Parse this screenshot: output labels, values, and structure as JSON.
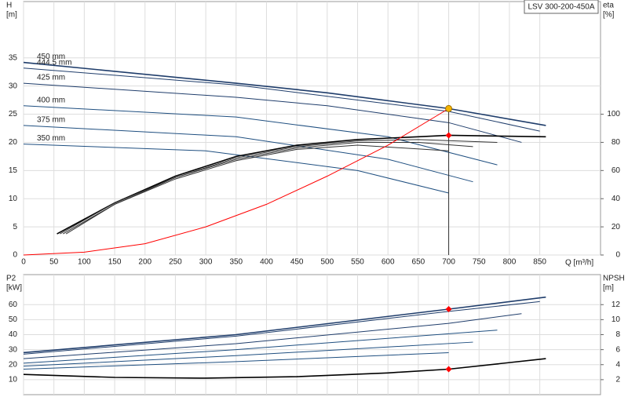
{
  "chart_data": [
    {
      "type": "line",
      "title": "LSV 300-200-450A",
      "ylabel": [
        "H",
        "[m]"
      ],
      "y2label": [
        "eta",
        "[%]"
      ],
      "xlabel": "Q [m³/h]",
      "xlim": [
        0,
        950
      ],
      "ylim": [
        0,
        45
      ],
      "y2lim": [
        0,
        180
      ],
      "xticks": [
        0,
        50,
        100,
        150,
        200,
        250,
        300,
        350,
        400,
        450,
        500,
        550,
        600,
        650,
        700,
        750,
        800,
        850
      ],
      "yticks": [
        0,
        5,
        10,
        15,
        20,
        25,
        30,
        35
      ],
      "y2ticks": [
        0,
        20,
        40,
        60,
        80,
        100
      ],
      "grid": true,
      "series": [
        {
          "name": "450 mm",
          "color": "#1f3d6b",
          "x": [
            0,
            350,
            500,
            700,
            860
          ],
          "values": [
            34.2,
            30.5,
            28.8,
            26,
            23
          ]
        },
        {
          "name": "444.5 mm",
          "color": "#1f3d6b",
          "x": [
            0,
            350,
            700,
            850
          ],
          "values": [
            33.2,
            30.2,
            25.5,
            22
          ]
        },
        {
          "name": "425 mm",
          "color": "#1f3d6b",
          "x": [
            0,
            350,
            500,
            700,
            820
          ],
          "values": [
            30.5,
            28,
            26.5,
            23.5,
            20
          ]
        },
        {
          "name": "400 mm",
          "color": "#1f4f80",
          "x": [
            0,
            350,
            600,
            780
          ],
          "values": [
            26.5,
            24.5,
            21,
            16
          ]
        },
        {
          "name": "375 mm",
          "color": "#1f4f80",
          "x": [
            0,
            350,
            600,
            740
          ],
          "values": [
            23,
            21,
            17,
            13
          ]
        },
        {
          "name": "350 mm",
          "color": "#1f4f80",
          "x": [
            0,
            300,
            550,
            700
          ],
          "values": [
            19.7,
            18.5,
            15,
            11
          ]
        },
        {
          "color": "#000000",
          "axis": "y2",
          "x": [
            55,
            150,
            250,
            350,
            450,
            550,
            650,
            700,
            860
          ],
          "values": [
            15,
            37,
            56,
            70,
            78,
            82,
            84,
            85,
            84
          ]
        },
        {
          "color": "#333333",
          "axis": "y2",
          "x": [
            60,
            150,
            250,
            350,
            450,
            550,
            650,
            780
          ],
          "values": [
            15,
            37,
            55,
            69,
            77,
            81,
            82,
            80
          ]
        },
        {
          "color": "#333333",
          "axis": "y2",
          "x": [
            65,
            150,
            250,
            350,
            450,
            550,
            650,
            740
          ],
          "values": [
            15,
            36,
            55,
            68,
            76,
            80,
            80,
            77
          ]
        },
        {
          "color": "#333333",
          "axis": "y2",
          "x": [
            70,
            150,
            250,
            350,
            450,
            550,
            700
          ],
          "values": [
            15,
            36,
            54,
            67,
            75,
            78,
            74
          ]
        },
        {
          "color": "#ff0000",
          "x": [
            0,
            100,
            200,
            300,
            400,
            500,
            600,
            700
          ],
          "values": [
            0,
            0.5,
            2,
            5,
            9,
            14,
            19.5,
            26
          ]
        }
      ],
      "points": [
        {
          "x": 700,
          "y": 26,
          "color": "#f5b400"
        },
        {
          "x": 700,
          "y": 85,
          "axis": "y2",
          "color": "#ff0000"
        }
      ]
    },
    {
      "type": "line",
      "ylabel": [
        "P2",
        "[kW]"
      ],
      "y2label": [
        "NPSH",
        "[m]"
      ],
      "xlim": [
        0,
        950
      ],
      "ylim": [
        0,
        80
      ],
      "y2lim": [
        0,
        16
      ],
      "xticks": [
        0,
        50,
        100,
        150,
        200,
        250,
        300,
        350,
        400,
        450,
        500,
        550,
        600,
        650,
        700,
        750,
        800,
        850
      ],
      "yticks": [
        10,
        20,
        30,
        40,
        50,
        60
      ],
      "y2ticks": [
        2,
        4,
        6,
        8,
        10,
        12
      ],
      "grid": true,
      "series": [
        {
          "color": "#1f3d6b",
          "x": [
            0,
            350,
            700,
            860
          ],
          "values": [
            28,
            40,
            57,
            65
          ]
        },
        {
          "color": "#1f3d6b",
          "x": [
            0,
            350,
            700,
            850
          ],
          "values": [
            27,
            39,
            55.5,
            62
          ]
        },
        {
          "color": "#1f3d6b",
          "x": [
            0,
            350,
            700,
            820
          ],
          "values": [
            24,
            34,
            47.5,
            54
          ]
        },
        {
          "color": "#1f4f80",
          "x": [
            0,
            350,
            780
          ],
          "values": [
            21,
            30,
            43
          ]
        },
        {
          "color": "#1f4f80",
          "x": [
            0,
            350,
            740
          ],
          "values": [
            19,
            26,
            35
          ]
        },
        {
          "color": "#1f4f80",
          "x": [
            0,
            350,
            700
          ],
          "values": [
            17,
            22,
            28
          ]
        },
        {
          "color": "#000000",
          "axis": "y2",
          "x": [
            0,
            150,
            300,
            450,
            600,
            700,
            860
          ],
          "values": [
            2.7,
            2.3,
            2.2,
            2.4,
            2.9,
            3.4,
            4.8
          ]
        }
      ],
      "points": [
        {
          "x": 700,
          "y": 57,
          "color": "#ff0000"
        },
        {
          "x": 700,
          "y": 3.4,
          "axis": "y2",
          "color": "#ff0000"
        }
      ]
    }
  ]
}
